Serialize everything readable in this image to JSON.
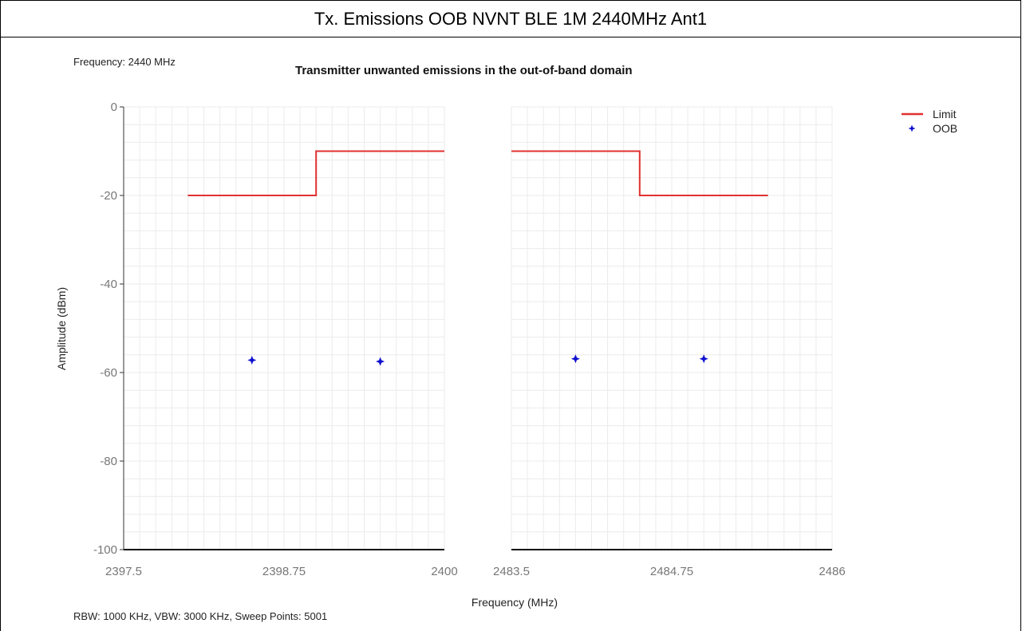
{
  "header": {
    "title": "Tx. Emissions OOB NVNT BLE 1M 2440MHz Ant1"
  },
  "info": {
    "frequency": "Frequency: 2440 MHz",
    "settings": "RBW: 1000 KHz,  VBW: 3000 KHz,  Sweep Points: 5001"
  },
  "chart_data": {
    "type": "line",
    "title": "Transmitter unwanted emissions in the out-of-band domain",
    "xlabel": "Frequency (MHz)",
    "ylabel": "Amplitude (dBm)",
    "ylim": [
      -100,
      0
    ],
    "yticks": [
      0,
      -20,
      -40,
      -60,
      -80,
      -100
    ],
    "ytick_labels": [
      "0",
      "-20",
      "-40",
      "-60",
      "-80",
      "-100"
    ],
    "grid": true,
    "legend_position": "top-right",
    "panels": [
      {
        "xlim": [
          2397.5,
          2400
        ],
        "xticks": [
          2397.5,
          2398.75,
          2400
        ],
        "xtick_labels": [
          "2397.5",
          "2398.75",
          "2400"
        ]
      },
      {
        "xlim": [
          2483.5,
          2486
        ],
        "xticks": [
          2483.5,
          2484.75,
          2486
        ],
        "xtick_labels": [
          "2483.5",
          "2484.75",
          "2486"
        ]
      }
    ],
    "series": [
      {
        "name": "Limit",
        "kind": "line",
        "color": "#e03030",
        "segments": [
          {
            "panel": 0,
            "x": [
              2398.0,
              2399.0,
              2399.0,
              2400.0
            ],
            "y": [
              -20,
              -20,
              -10,
              -10
            ]
          },
          {
            "panel": 1,
            "x": [
              2483.5,
              2484.5,
              2484.5,
              2485.5
            ],
            "y": [
              -10,
              -10,
              -20,
              -20
            ]
          }
        ]
      },
      {
        "name": "OOB",
        "kind": "scatter",
        "color": "#1010d0",
        "points": [
          {
            "panel": 0,
            "x": 2398.5,
            "y": -57.2
          },
          {
            "panel": 0,
            "x": 2399.5,
            "y": -57.5
          },
          {
            "panel": 1,
            "x": 2484.0,
            "y": -56.9
          },
          {
            "panel": 1,
            "x": 2485.0,
            "y": -56.9
          }
        ]
      }
    ]
  }
}
